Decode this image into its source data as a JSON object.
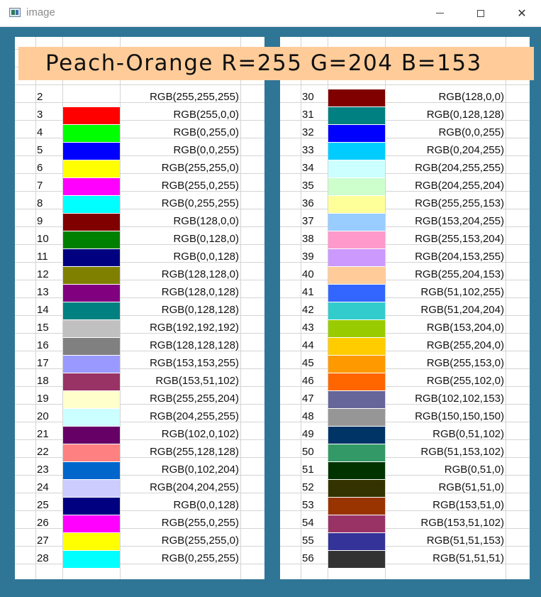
{
  "window": {
    "title": "image",
    "minimize_icon": "minimize-icon",
    "maximize_icon": "maximize-icon",
    "close_icon": "close-icon"
  },
  "banner": {
    "text": "Peach-Orange R=255 G=204 B=153",
    "color": "#ffcc99"
  },
  "left_table": [
    {
      "num": "2",
      "color": "",
      "rgb": "RGB(255,255,255)"
    },
    {
      "num": "3",
      "color": "#ff0000",
      "rgb": "RGB(255,0,0)"
    },
    {
      "num": "4",
      "color": "#00ff00",
      "rgb": "RGB(0,255,0)"
    },
    {
      "num": "5",
      "color": "#0000ff",
      "rgb": "RGB(0,0,255)"
    },
    {
      "num": "6",
      "color": "#ffff00",
      "rgb": "RGB(255,255,0)"
    },
    {
      "num": "7",
      "color": "#ff00ff",
      "rgb": "RGB(255,0,255)"
    },
    {
      "num": "8",
      "color": "#00ffff",
      "rgb": "RGB(0,255,255)"
    },
    {
      "num": "9",
      "color": "#800000",
      "rgb": "RGB(128,0,0)"
    },
    {
      "num": "10",
      "color": "#008000",
      "rgb": "RGB(0,128,0)"
    },
    {
      "num": "11",
      "color": "#000080",
      "rgb": "RGB(0,0,128)"
    },
    {
      "num": "12",
      "color": "#808000",
      "rgb": "RGB(128,128,0)"
    },
    {
      "num": "13",
      "color": "#800080",
      "rgb": "RGB(128,0,128)"
    },
    {
      "num": "14",
      "color": "#008080",
      "rgb": "RGB(0,128,128)"
    },
    {
      "num": "15",
      "color": "#c0c0c0",
      "rgb": "RGB(192,192,192)"
    },
    {
      "num": "16",
      "color": "#808080",
      "rgb": "RGB(128,128,128)"
    },
    {
      "num": "17",
      "color": "#9999ff",
      "rgb": "RGB(153,153,255)"
    },
    {
      "num": "18",
      "color": "#993366",
      "rgb": "RGB(153,51,102)"
    },
    {
      "num": "19",
      "color": "#ffffcc",
      "rgb": "RGB(255,255,204)"
    },
    {
      "num": "20",
      "color": "#ccffff",
      "rgb": "RGB(204,255,255)"
    },
    {
      "num": "21",
      "color": "#660066",
      "rgb": "RGB(102,0,102)"
    },
    {
      "num": "22",
      "color": "#ff8080",
      "rgb": "RGB(255,128,128)"
    },
    {
      "num": "23",
      "color": "#0066cc",
      "rgb": "RGB(0,102,204)"
    },
    {
      "num": "24",
      "color": "#ccccff",
      "rgb": "RGB(204,204,255)"
    },
    {
      "num": "25",
      "color": "#000080",
      "rgb": "RGB(0,0,128)"
    },
    {
      "num": "26",
      "color": "#ff00ff",
      "rgb": "RGB(255,0,255)"
    },
    {
      "num": "27",
      "color": "#ffff00",
      "rgb": "RGB(255,255,0)"
    },
    {
      "num": "28",
      "color": "#00ffff",
      "rgb": "RGB(0,255,255)"
    }
  ],
  "right_table": [
    {
      "num": "30",
      "color": "#800000",
      "rgb": "RGB(128,0,0)"
    },
    {
      "num": "31",
      "color": "#008080",
      "rgb": "RGB(0,128,128)"
    },
    {
      "num": "32",
      "color": "#0000ff",
      "rgb": "RGB(0,0,255)"
    },
    {
      "num": "33",
      "color": "#00ccff",
      "rgb": "RGB(0,204,255)"
    },
    {
      "num": "34",
      "color": "#ccffff",
      "rgb": "RGB(204,255,255)"
    },
    {
      "num": "35",
      "color": "#ccffcc",
      "rgb": "RGB(204,255,204)"
    },
    {
      "num": "36",
      "color": "#ffff99",
      "rgb": "RGB(255,255,153)"
    },
    {
      "num": "37",
      "color": "#99ccff",
      "rgb": "RGB(153,204,255)"
    },
    {
      "num": "38",
      "color": "#ff99cc",
      "rgb": "RGB(255,153,204)"
    },
    {
      "num": "39",
      "color": "#cc99ff",
      "rgb": "RGB(204,153,255)"
    },
    {
      "num": "40",
      "color": "#ffcc99",
      "rgb": "RGB(255,204,153)"
    },
    {
      "num": "41",
      "color": "#3366ff",
      "rgb": "RGB(51,102,255)"
    },
    {
      "num": "42",
      "color": "#33cccc",
      "rgb": "RGB(51,204,204)"
    },
    {
      "num": "43",
      "color": "#99cc00",
      "rgb": "RGB(153,204,0)"
    },
    {
      "num": "44",
      "color": "#ffcc00",
      "rgb": "RGB(255,204,0)"
    },
    {
      "num": "45",
      "color": "#ff9900",
      "rgb": "RGB(255,153,0)"
    },
    {
      "num": "46",
      "color": "#ff6600",
      "rgb": "RGB(255,102,0)"
    },
    {
      "num": "47",
      "color": "#666699",
      "rgb": "RGB(102,102,153)"
    },
    {
      "num": "48",
      "color": "#969696",
      "rgb": "RGB(150,150,150)"
    },
    {
      "num": "49",
      "color": "#003366",
      "rgb": "RGB(0,51,102)"
    },
    {
      "num": "50",
      "color": "#339966",
      "rgb": "RGB(51,153,102)"
    },
    {
      "num": "51",
      "color": "#003300",
      "rgb": "RGB(0,51,0)"
    },
    {
      "num": "52",
      "color": "#333300",
      "rgb": "RGB(51,51,0)"
    },
    {
      "num": "53",
      "color": "#993300",
      "rgb": "RGB(153,51,0)"
    },
    {
      "num": "54",
      "color": "#993366",
      "rgb": "RGB(153,51,102)"
    },
    {
      "num": "55",
      "color": "#333399",
      "rgb": "RGB(51,51,153)"
    },
    {
      "num": "56",
      "color": "#333333",
      "rgb": "RGB(51,51,51)"
    }
  ],
  "colors": {
    "canvas_background": "#2f7696",
    "gridline": "#d4d4d4"
  }
}
